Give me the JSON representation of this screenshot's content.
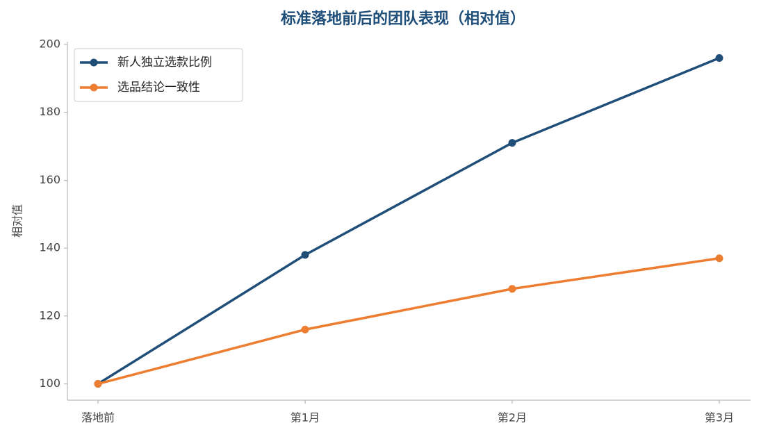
{
  "chart_data": {
    "type": "line",
    "title": "标准落地前后的团队表现（相对值）",
    "y_label": "相对值",
    "categories": [
      "落地前",
      "第1月",
      "第2月",
      "第3月"
    ],
    "series": [
      {
        "name": "新人独立选款比例",
        "color": "#1f4e79",
        "values": [
          100,
          138,
          171,
          196
        ]
      },
      {
        "name": "选品结论一致性",
        "color": "#ed7d31",
        "values": [
          100,
          116,
          128,
          137
        ]
      }
    ],
    "ylim": [
      95.2,
      200.8
    ],
    "yticks": [
      100,
      120,
      140,
      160,
      180,
      200
    ],
    "legend": "upper left"
  }
}
